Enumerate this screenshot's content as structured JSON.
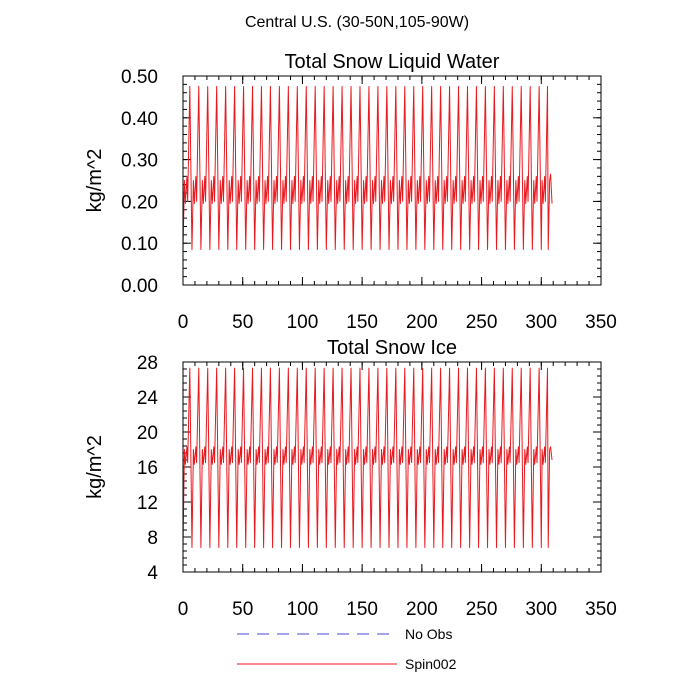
{
  "figure_title": "Central U.S. (30-50N,105-90W)",
  "legend": {
    "items": [
      {
        "label": "No Obs",
        "color": "#4a4ad8",
        "dash": true
      },
      {
        "label": "Spin002",
        "color": "#e8191f",
        "dash": false
      }
    ]
  },
  "chart_data": [
    {
      "type": "line",
      "title": "Total Snow Liquid Water",
      "ylabel": "kg/m^2",
      "xlabel": "",
      "xlim": [
        0,
        350
      ],
      "ylim": [
        0.0,
        0.5
      ],
      "xticks": [
        0,
        50,
        100,
        150,
        200,
        250,
        300,
        350
      ],
      "xtick_labels": [
        "0",
        "50",
        "100",
        "150",
        "200",
        "250",
        "300",
        "350"
      ],
      "yticks": [
        0.0,
        0.1,
        0.2,
        0.3,
        0.4,
        0.5
      ],
      "ytick_labels": [
        "0.00",
        "0.10",
        "0.20",
        "0.30",
        "0.40",
        "0.50"
      ],
      "series": [
        {
          "name": "Spin002",
          "color": "#e8191f",
          "start": {
            "x": 0,
            "y": 0.35
          },
          "period": 7.5,
          "cycles": 40,
          "x_end": 309,
          "cycle_shape": [
            [
              0,
              0.085
            ],
            [
              1.2,
              0.25
            ],
            [
              2.0,
              0.195
            ],
            [
              3.3,
              0.26
            ],
            [
              3.9,
              0.2
            ],
            [
              5.7,
              0.475
            ],
            [
              7.5,
              0.085
            ]
          ],
          "tail": [
            [
              300.7,
              0.25
            ],
            [
              301.5,
              0.195
            ],
            [
              302.8,
              0.26
            ],
            [
              303.4,
              0.2
            ],
            [
              305.2,
              0.475
            ],
            [
              305.8,
              0.085
            ],
            [
              307.0,
              0.25
            ],
            [
              307.8,
              0.265
            ],
            [
              309.0,
              0.195
            ]
          ]
        }
      ]
    },
    {
      "type": "line",
      "title": "Total Snow Ice",
      "ylabel": "kg/m^2",
      "xlabel": "",
      "xlim": [
        0,
        350
      ],
      "ylim": [
        4,
        28
      ],
      "xticks": [
        0,
        50,
        100,
        150,
        200,
        250,
        300,
        350
      ],
      "xtick_labels": [
        "0",
        "50",
        "100",
        "150",
        "200",
        "250",
        "300",
        "350"
      ],
      "yticks": [
        4,
        8,
        12,
        16,
        20,
        24,
        28
      ],
      "ytick_labels": [
        "4",
        "8",
        "12",
        "16",
        "20",
        "24",
        "28"
      ],
      "series": [
        {
          "name": "Spin002",
          "color": "#e8191f",
          "start": {
            "x": 0,
            "y": 18.6
          },
          "period": 7.5,
          "cycles": 40,
          "x_end": 309,
          "cycle_shape": [
            [
              0,
              6.8
            ],
            [
              1.2,
              18.0
            ],
            [
              2.0,
              16.3
            ],
            [
              3.3,
              18.3
            ],
            [
              3.9,
              16.5
            ],
            [
              5.7,
              27.3
            ],
            [
              7.5,
              6.8
            ]
          ],
          "tail": [
            [
              300.7,
              18.0
            ],
            [
              301.5,
              16.3
            ],
            [
              302.8,
              18.3
            ],
            [
              303.4,
              16.5
            ],
            [
              305.2,
              27.3
            ],
            [
              305.8,
              6.8
            ],
            [
              307.0,
              18.0
            ],
            [
              307.8,
              18.3
            ],
            [
              309.0,
              16.8
            ]
          ]
        }
      ]
    }
  ]
}
